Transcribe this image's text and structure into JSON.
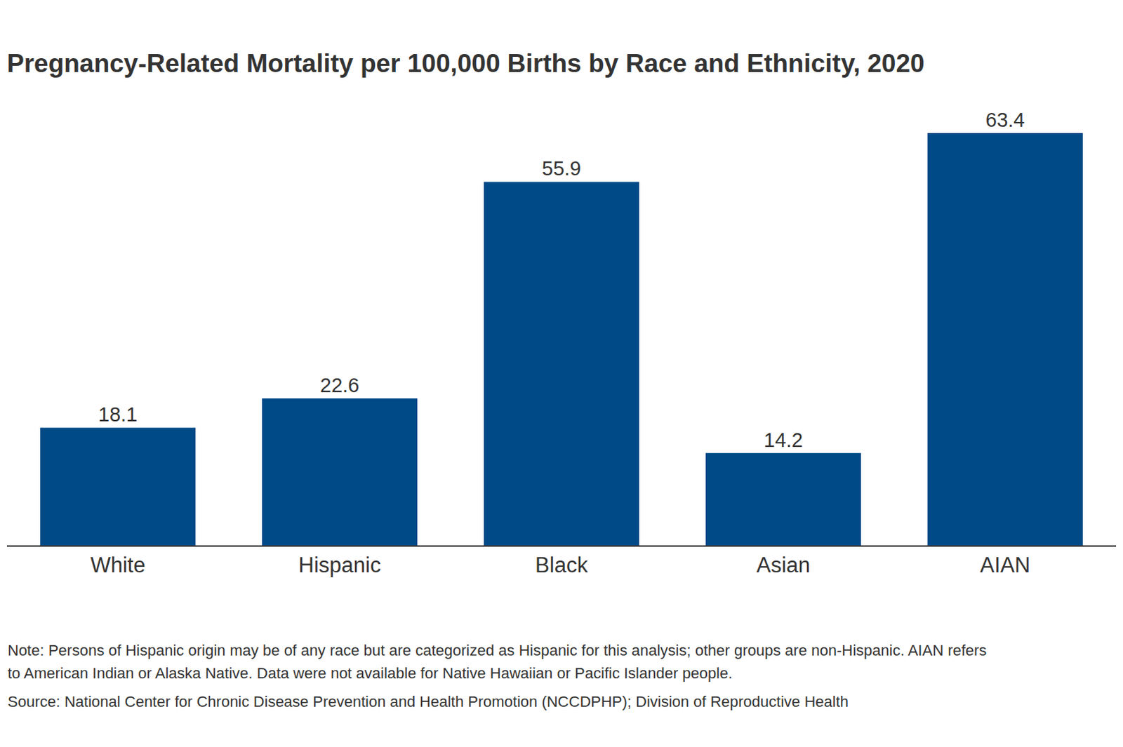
{
  "chart_data": {
    "type": "bar",
    "title": "Pregnancy-Related Mortality per 100,000 Births by Race and Ethnicity, 2020",
    "categories": [
      "White",
      "Hispanic",
      "Black",
      "Asian",
      "AIAN"
    ],
    "values": [
      18.1,
      22.6,
      55.9,
      14.2,
      63.4
    ],
    "color": "#004a87",
    "ylim": [
      0,
      63.4
    ],
    "grid": false,
    "data_labels": true,
    "tick_labels": "x",
    "note": "Note: Persons of Hispanic origin may be of any race but are categorized as Hispanic for this analysis; other groups are non-Hispanic. AIAN refers to American Indian or Alaska Native. Data were not available for Native Hawaiian or Pacific Islander people.",
    "source": "Source: National Center for Chronic Disease Prevention and Health Promotion (NCCDPHP); Division of Reproductive Health"
  }
}
